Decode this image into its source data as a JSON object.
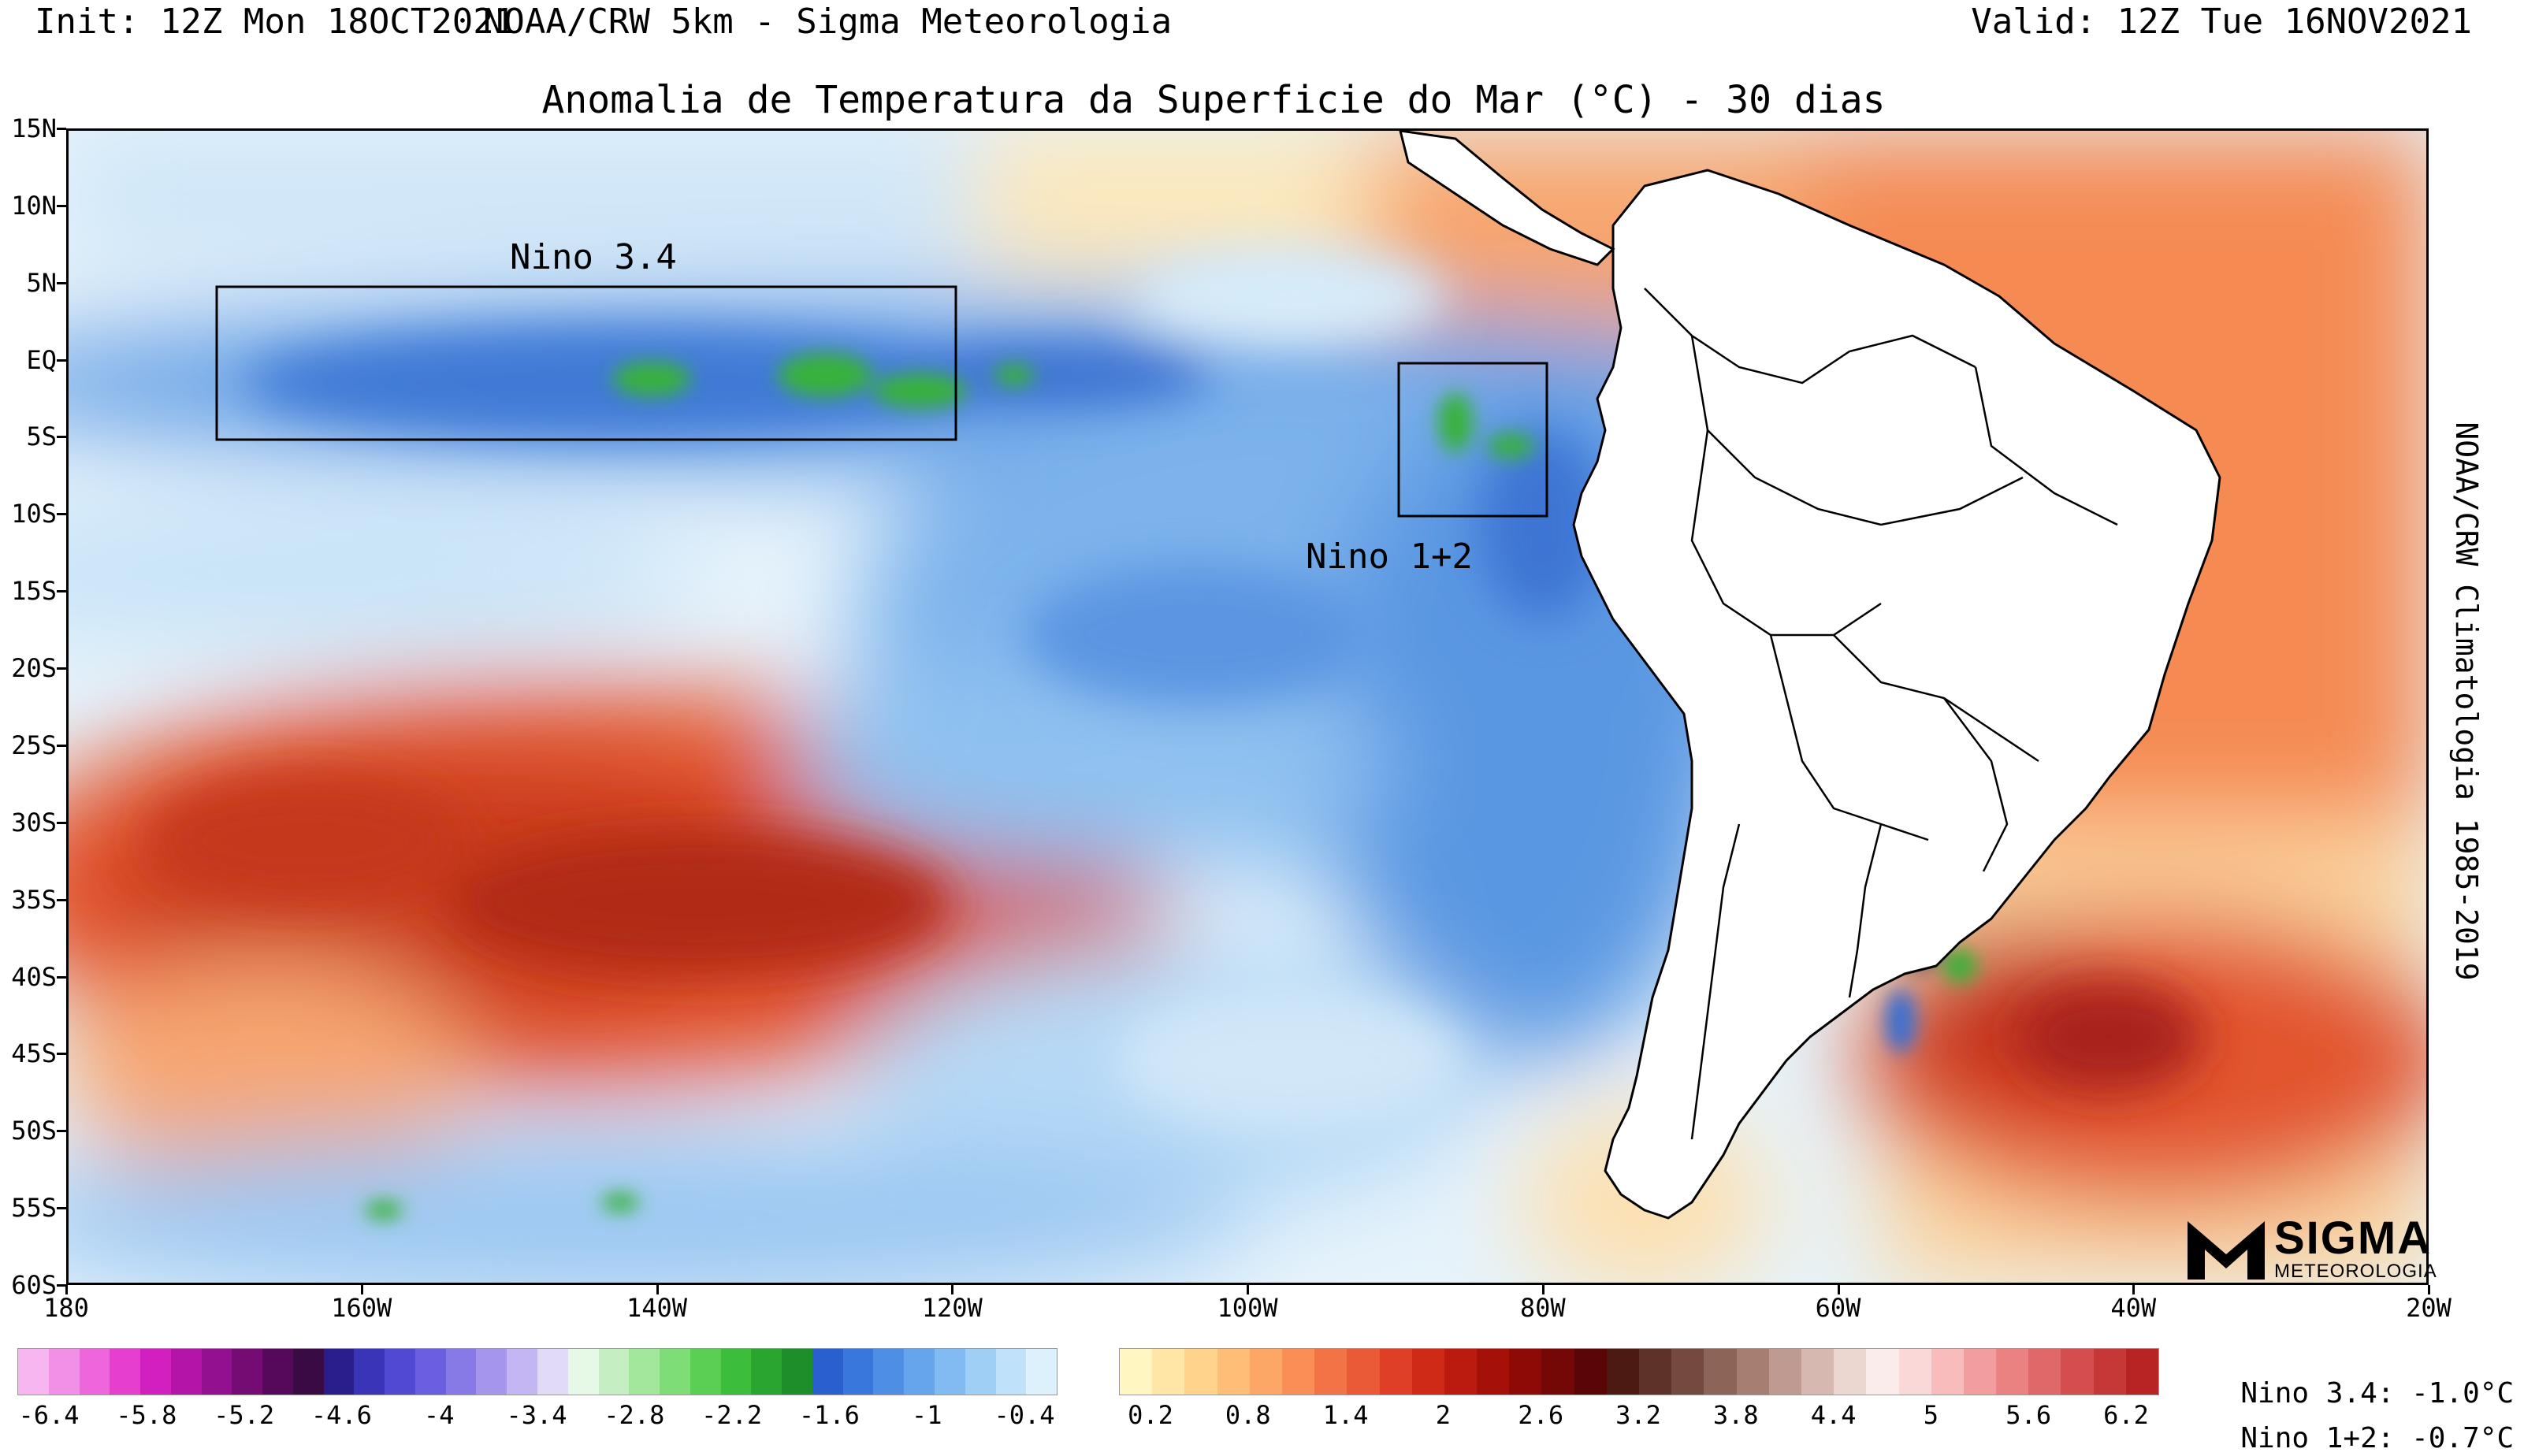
{
  "header": {
    "init": "Init: 12Z Mon 18OCT2021",
    "source": "NOAA/CRW 5km - Sigma Meteorologia",
    "valid": "Valid: 12Z Tue 16NOV2021"
  },
  "title": "Anomalia de Temperatura da Superficie do Mar (°C) - 30 dias",
  "side_label": "NOAA/CRW Climatologia 1985-2019",
  "axes": {
    "lat_labels": [
      "15N",
      "10N",
      "5N",
      "EQ",
      "5S",
      "10S",
      "15S",
      "20S",
      "25S",
      "30S",
      "35S",
      "40S",
      "45S",
      "50S",
      "55S",
      "60S"
    ],
    "lon_labels": [
      "180",
      "160W",
      "140W",
      "120W",
      "100W",
      "80W",
      "60W",
      "40W",
      "20W"
    ],
    "lat_range": [
      -60,
      15
    ],
    "lon_range": [
      -180,
      -20
    ]
  },
  "regions": [
    {
      "name": "Nino 3.4",
      "lon": [
        -170,
        -120
      ],
      "lat": [
        -5,
        5
      ]
    },
    {
      "name": "Nino 1+2",
      "lon": [
        -90,
        -80
      ],
      "lat": [
        -10,
        0
      ]
    }
  ],
  "indices": [
    {
      "label": "Nino 3.4:",
      "value": "-1.0°C"
    },
    {
      "label": "Nino 1+2:",
      "value": "-0.7°C"
    }
  ],
  "colorbar_negative": {
    "labels": [
      "-6.4",
      "-5.8",
      "-5.2",
      "-4.6",
      "-4",
      "-3.4",
      "-2.8",
      "-2.2",
      "-1.6",
      "-1",
      "-0.4"
    ],
    "colors": [
      "#f7b6ef",
      "#f28fe6",
      "#ee66dc",
      "#e63fd0",
      "#d21fc0",
      "#b414a8",
      "#931090",
      "#740c74",
      "#56085a",
      "#3a0a44",
      "#2a1d8c",
      "#3a34b8",
      "#5249d2",
      "#6a5fe0",
      "#8779e6",
      "#a596ec",
      "#c4b6f2",
      "#e2dbf8",
      "#e6f8e6",
      "#c5efc2",
      "#a2e79c",
      "#7fdd78",
      "#5acf54",
      "#3dbd3c",
      "#2aa530",
      "#1e8e28",
      "#2a5fcf",
      "#3a77dc",
      "#4e8ee4",
      "#66a4ec",
      "#82baf2",
      "#a0cff6",
      "#bfe2fa",
      "#dcf1fc"
    ]
  },
  "colorbar_positive": {
    "labels": [
      "0.2",
      "0.8",
      "1.4",
      "2",
      "2.6",
      "3.2",
      "3.8",
      "4.4",
      "5",
      "5.6",
      "6.2"
    ],
    "colors": [
      "#fff6c2",
      "#ffe6a6",
      "#ffd38c",
      "#ffbe78",
      "#fda766",
      "#f98e56",
      "#f27446",
      "#ea5a36",
      "#df3f26",
      "#cf2a18",
      "#bb1a0e",
      "#a51008",
      "#8e0a06",
      "#740806",
      "#5a0606",
      "#4c1a12",
      "#5e3228",
      "#744a40",
      "#8c6458",
      "#a67e72",
      "#bf9a90",
      "#d6b8b0",
      "#ecd6d0",
      "#f9ecea",
      "#fbd8d8",
      "#f8bcbc",
      "#f29e9e",
      "#ea8282",
      "#e06868",
      "#d44e4e",
      "#c63838",
      "#b82424"
    ]
  },
  "logo": {
    "name": "SIGMA",
    "sub": "METEOROLOGIA"
  }
}
